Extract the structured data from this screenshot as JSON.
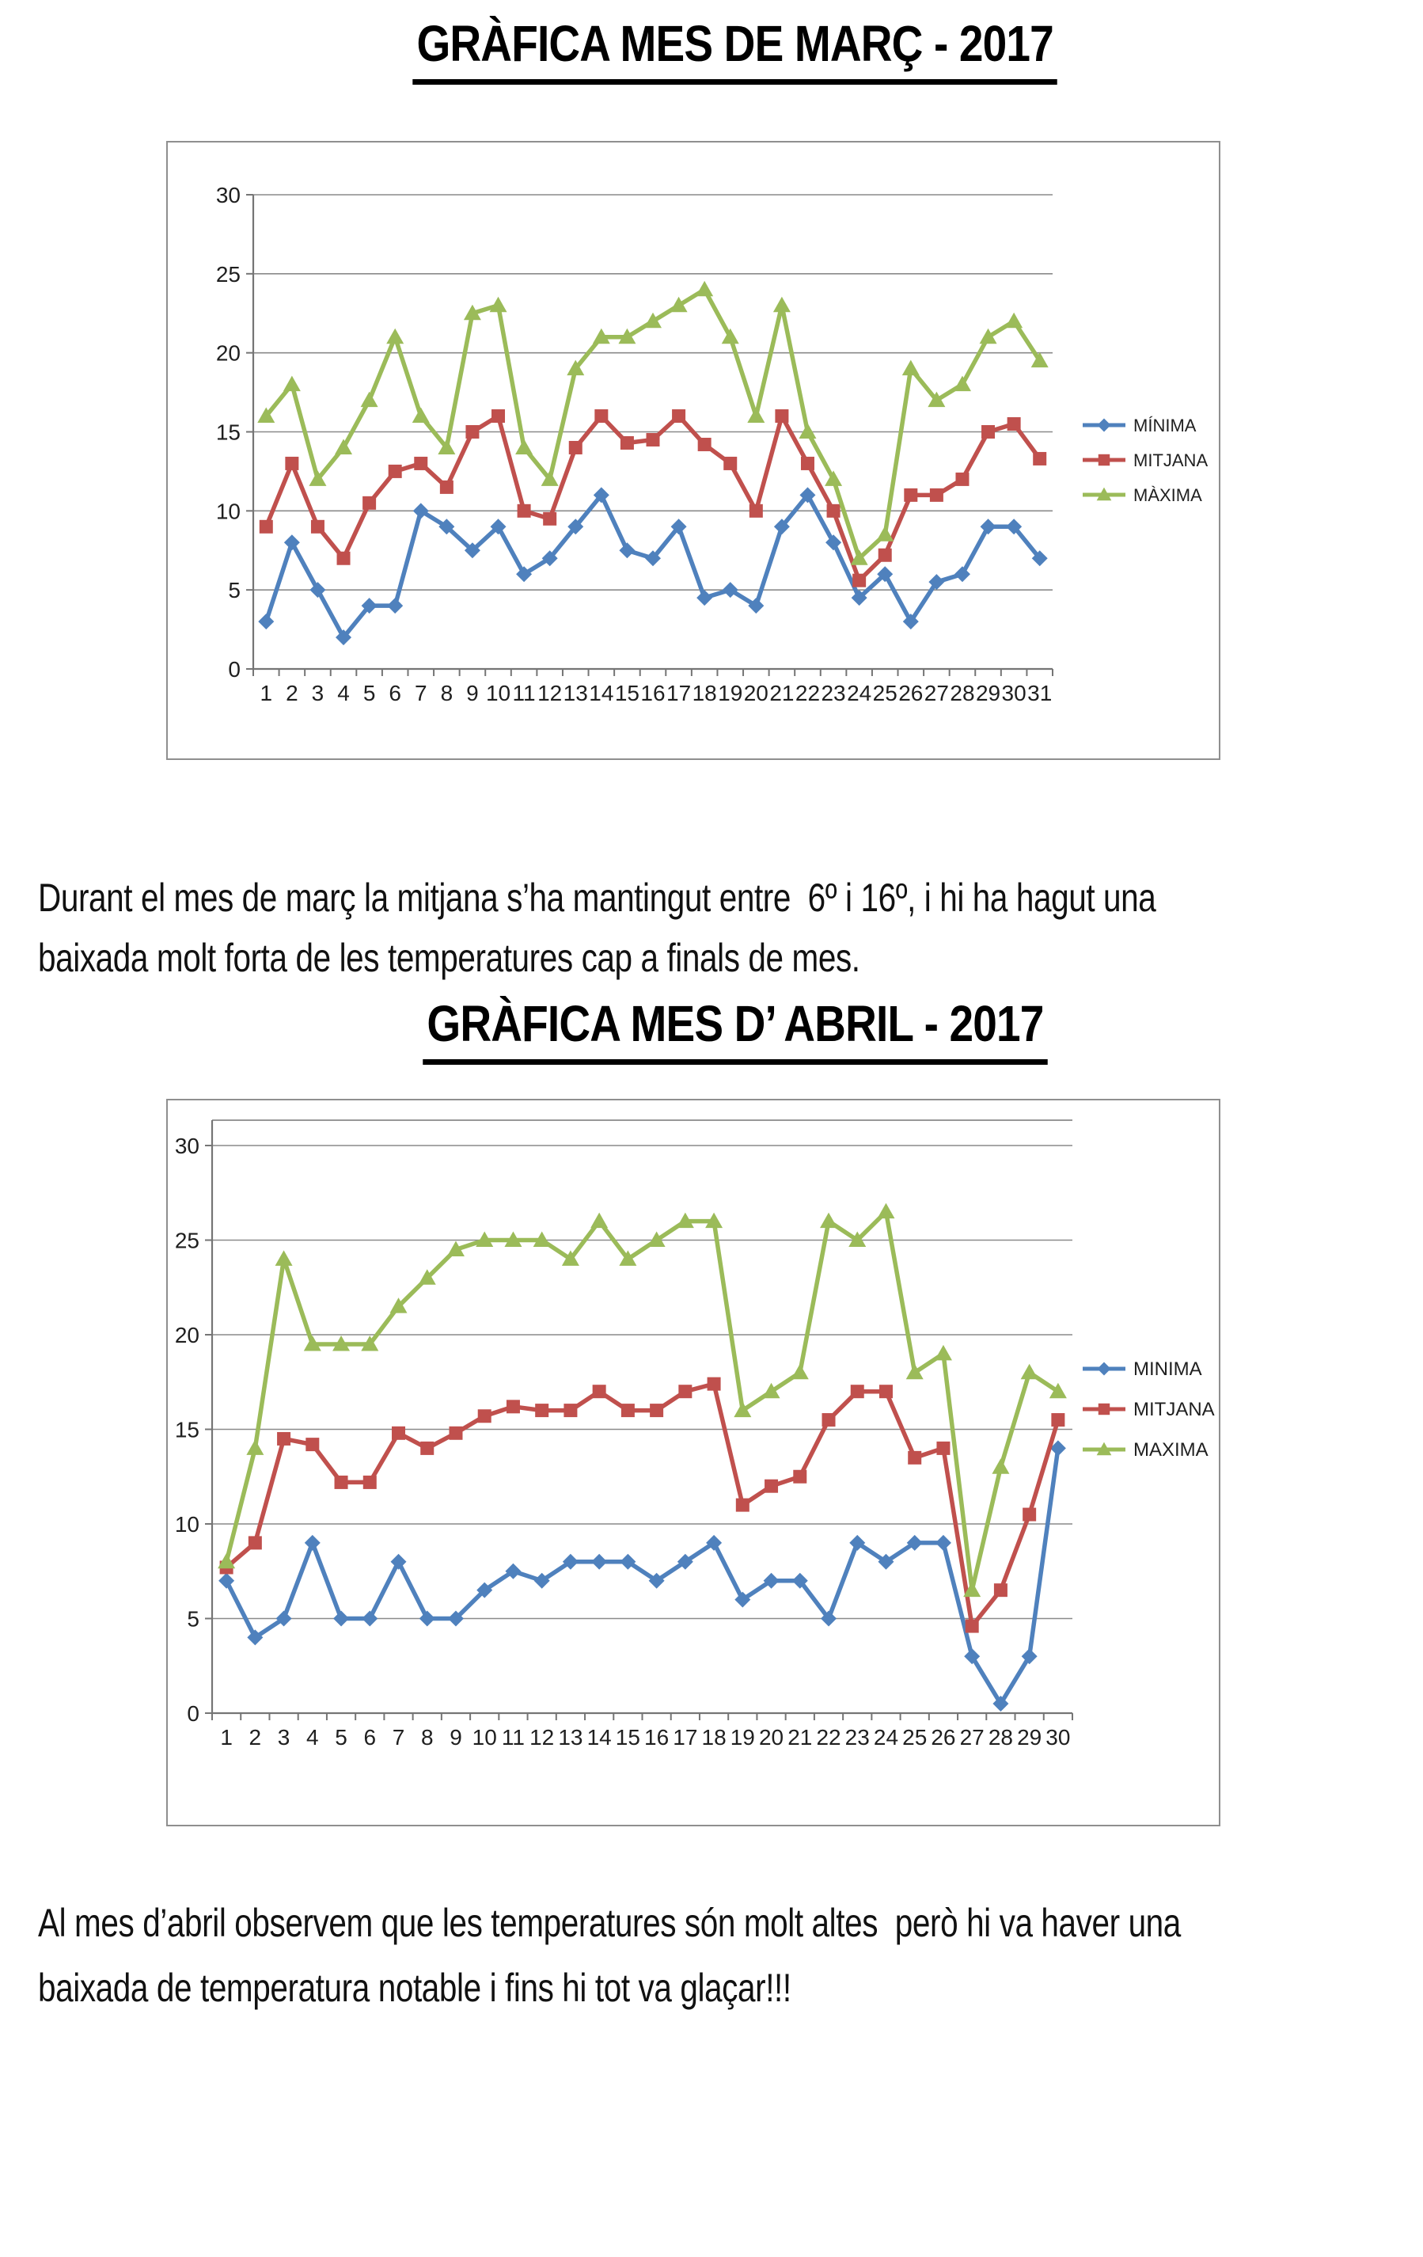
{
  "doc": {
    "march": {
      "title": "GRÀFICA MES DE MARÇ - 2017",
      "para": [
        "Durant el mes de març la mitjana s’ha mantingut entre  6º i 16º, i hi ha hagut una",
        "baixada molt forta de les temperatures cap a finals de mes."
      ]
    },
    "april": {
      "title": "GRÀFICA MES D’ ABRIL - 2017",
      "para": [
        "Al mes d’abril observem que les temperatures són molt altes  però hi va haver una",
        "baixada de temperatura notable i fins hi tot va glaçar!!!"
      ]
    }
  },
  "chart_data": [
    {
      "type": "line",
      "title": "GRÀFICA MES DE MARÇ - 2017",
      "xlabel": "",
      "ylabel": "",
      "ylim": [
        0,
        30
      ],
      "ytick": 5,
      "grid": true,
      "legend_position": "right",
      "categories": [
        1,
        2,
        3,
        4,
        5,
        6,
        7,
        8,
        9,
        10,
        11,
        12,
        13,
        14,
        15,
        16,
        17,
        18,
        19,
        20,
        21,
        22,
        23,
        24,
        25,
        26,
        27,
        28,
        29,
        30,
        31
      ],
      "series": [
        {
          "name": "MÍNIMA",
          "color": "#4F81BD",
          "marker": "diamond",
          "values": [
            3,
            8,
            5,
            2,
            4,
            4,
            10,
            9,
            7.5,
            9,
            6,
            7,
            9,
            11,
            7.5,
            7,
            9,
            4.5,
            5,
            4,
            9,
            11,
            8,
            4.5,
            6,
            3,
            5.5,
            6,
            9,
            9,
            7
          ]
        },
        {
          "name": "MITJANA",
          "color": "#C0504D",
          "marker": "square",
          "values": [
            9,
            13,
            9,
            7,
            10.5,
            12.5,
            13,
            11.5,
            15,
            16,
            10,
            9.5,
            14,
            16,
            14.3,
            14.5,
            16,
            14.2,
            13,
            10,
            16,
            13,
            10,
            5.6,
            7.2,
            11,
            11,
            12,
            15,
            15.5,
            13.3
          ]
        },
        {
          "name": "MÀXIMA",
          "color": "#9BBB59",
          "marker": "triangle",
          "values": [
            16,
            18,
            12,
            14,
            17,
            21,
            16,
            14,
            22.5,
            23,
            14,
            12,
            19,
            21,
            21,
            22,
            23,
            24,
            21,
            16,
            23,
            15,
            12,
            7,
            8.5,
            19,
            17,
            18,
            21,
            22,
            19.5
          ]
        }
      ]
    },
    {
      "type": "line",
      "title": "GRÀFICA MES D’ ABRIL - 2017",
      "xlabel": "",
      "ylabel": "",
      "ylim": [
        0,
        30
      ],
      "ytick": 5,
      "grid": true,
      "legend_position": "right",
      "categories": [
        1,
        2,
        3,
        4,
        5,
        6,
        7,
        8,
        9,
        10,
        11,
        12,
        13,
        14,
        15,
        16,
        17,
        18,
        19,
        20,
        21,
        22,
        23,
        24,
        25,
        26,
        27,
        28,
        29,
        30
      ],
      "series": [
        {
          "name": "MINIMA",
          "color": "#4F81BD",
          "marker": "diamond",
          "values": [
            7,
            4,
            5,
            9,
            5,
            5,
            8,
            5,
            5,
            6.5,
            7.5,
            7,
            8,
            8,
            8,
            7,
            8,
            9,
            6,
            7,
            7,
            5,
            9,
            8,
            9,
            9,
            3,
            0.5,
            3,
            14
          ]
        },
        {
          "name": "MITJANA",
          "color": "#C0504D",
          "marker": "square",
          "values": [
            7.7,
            9,
            14.5,
            14.2,
            12.2,
            12.2,
            14.8,
            14,
            14.8,
            15.7,
            16.2,
            16,
            16,
            17,
            16,
            16,
            17,
            17.4,
            11,
            12,
            12.5,
            15.5,
            17,
            17,
            13.5,
            14,
            4.6,
            6.5,
            10.5,
            15.5
          ]
        },
        {
          "name": "MAXIMA",
          "color": "#9BBB59",
          "marker": "triangle",
          "values": [
            8,
            14,
            24,
            19.5,
            19.5,
            19.5,
            21.5,
            23,
            24.5,
            25,
            25,
            25,
            24,
            26,
            24,
            25,
            26,
            26,
            16,
            17,
            18,
            26,
            25,
            26.5,
            18,
            19,
            6.5,
            13,
            18,
            17
          ]
        }
      ]
    }
  ]
}
